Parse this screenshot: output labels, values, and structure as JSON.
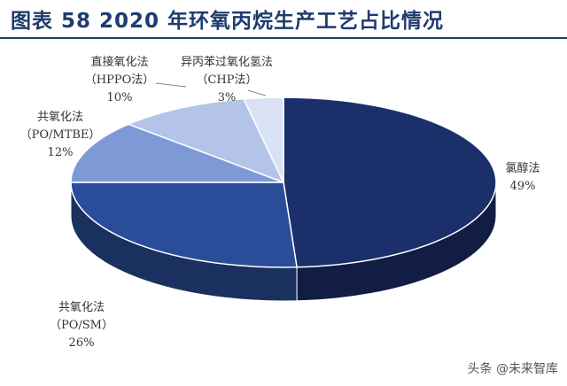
{
  "title": "图表 58    2020 年环氧丙烷生产工艺占比情况",
  "watermark": "头条 @未来智库",
  "chart_data": {
    "type": "pie",
    "style": "3d",
    "title": "2020 年环氧丙烷生产工艺占比情况",
    "slices": [
      {
        "name": "氯醇法",
        "value": 49,
        "label": "49%",
        "color": "#1b2f6b"
      },
      {
        "name": "共氧化法",
        "sub": "（PO/SM）",
        "value": 26,
        "label": "26%",
        "color": "#2a4d9a"
      },
      {
        "name": "共氧化法",
        "sub": "（PO/MTBE）",
        "value": 12,
        "label": "12%",
        "color": "#7e9ad6"
      },
      {
        "name": "直接氧化法",
        "sub": "（HPPO法）",
        "value": 10,
        "label": "10%",
        "color": "#b3c4e8"
      },
      {
        "name": "异丙苯过氧化氢法",
        "sub": "（CHP法）",
        "value": 3,
        "label": "3%",
        "color": "#d9e2f4"
      }
    ]
  }
}
